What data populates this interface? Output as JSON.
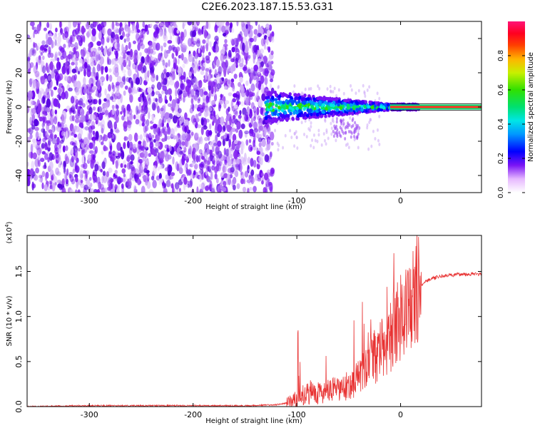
{
  "title": "C2E6.2023.187.15.53.G31",
  "chart_data": [
    {
      "type": "heatmap",
      "xlabel": "Height of straight line (km)",
      "ylabel": "Frequency (Hz)",
      "xlim": [
        -360,
        78
      ],
      "ylim": [
        -50,
        50
      ],
      "xticks": [
        -300,
        -200,
        -100,
        0
      ],
      "yticks": [
        -40,
        -20,
        0,
        20,
        40
      ],
      "colorbar": {
        "label": "Normalized spectral amplitude",
        "range": [
          0.0,
          1.0
        ],
        "ticks": [
          "0.0",
          "0.2",
          "0.4",
          "0.6",
          "0.8"
        ]
      },
      "ridge_frequency_hz": 0,
      "noise_region_end_km": -130,
      "focused_region_start_km": -10
    },
    {
      "type": "line",
      "xlabel": "Height of straight line (km)",
      "ylabel": "SNR (10 * v/v)",
      "scale_label": "(x10",
      "scale_exp": "4",
      "scale_close": ")",
      "xlim": [
        -360,
        78
      ],
      "ylim": [
        0,
        1.9
      ],
      "xticks": [
        -300,
        -200,
        -100,
        0
      ],
      "yticks": [
        "0.0",
        "0.5",
        "1.0",
        "1.5"
      ],
      "series": [
        {
          "color": "#e83232",
          "x": [
            -360,
            -300,
            -200,
            -150,
            -120,
            -105,
            -95,
            -85,
            -75,
            -65,
            -55,
            -45,
            -40,
            -35,
            -30,
            -25,
            -20,
            -15,
            -10,
            -5,
            0,
            5,
            10,
            15,
            20,
            25,
            30,
            40,
            50,
            60,
            70,
            78
          ],
          "y": [
            0.0,
            0.01,
            0.01,
            0.01,
            0.02,
            0.05,
            0.12,
            0.17,
            0.15,
            0.18,
            0.2,
            0.28,
            0.33,
            0.4,
            0.48,
            0.55,
            0.6,
            0.7,
            0.8,
            0.9,
            1.0,
            1.1,
            1.2,
            1.28,
            1.35,
            1.4,
            1.42,
            1.45,
            1.46,
            1.47,
            1.47,
            1.47
          ]
        }
      ]
    }
  ]
}
